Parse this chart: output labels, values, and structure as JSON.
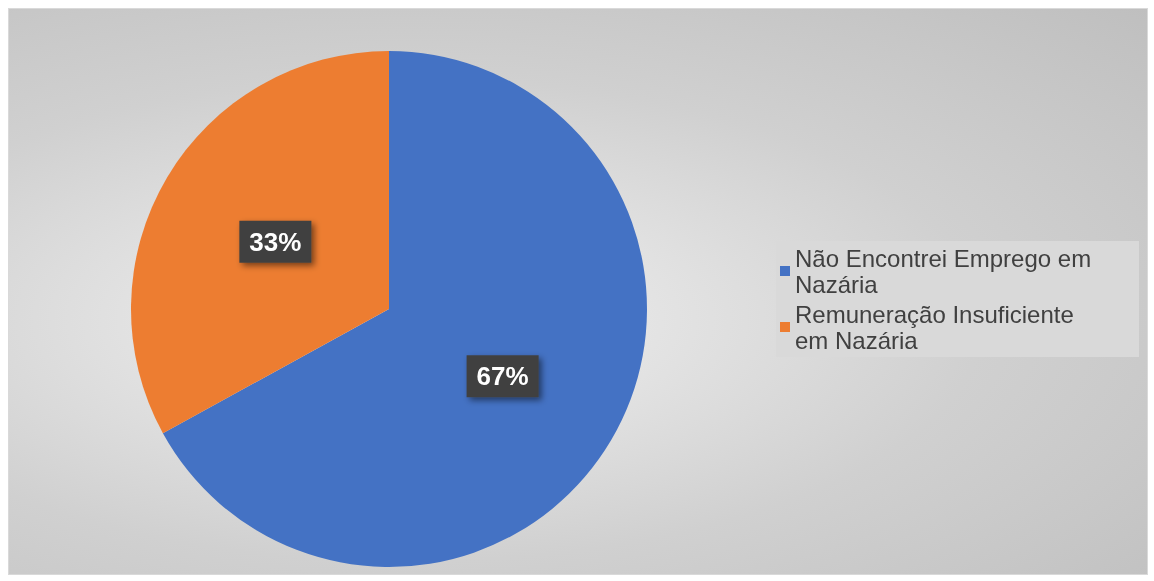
{
  "chart_data": {
    "type": "pie",
    "categories": [
      "Não Encontrei Emprego em  Nazária",
      "Remuneração Insuficiente em Nazária"
    ],
    "values": [
      67,
      33
    ],
    "colors": [
      "#4472c4",
      "#ed7d31"
    ],
    "value_labels": [
      "67%",
      "33%"
    ],
    "legend": "right"
  }
}
